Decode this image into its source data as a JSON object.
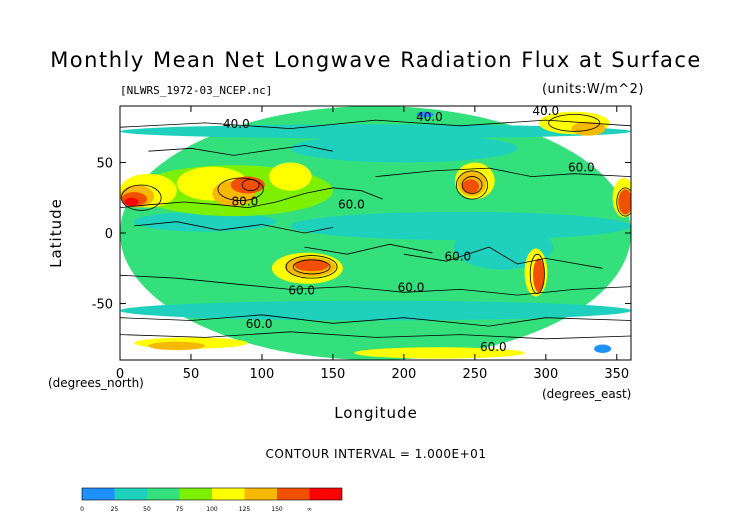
{
  "chart_data": {
    "type": "heatmap",
    "title": "Monthly Mean Net Longwave Radiation Flux at Surface",
    "file_label": "[NLWRS_1972-03_NCEP.nc]",
    "units_label": "(units:W/m^2)",
    "xlabel": "Longitude",
    "ylabel": "Latitude",
    "x_unit_label": "(degrees_east)",
    "y_unit_label": "(degrees_north)",
    "xlim": [
      0,
      360
    ],
    "ylim": [
      -90,
      90
    ],
    "x_ticks": [
      0,
      50,
      100,
      150,
      200,
      250,
      300,
      350
    ],
    "y_ticks": [
      -50,
      0,
      50
    ],
    "contour_interval_text": "CONTOUR INTERVAL = 1.000E+01",
    "contour_labels": [
      {
        "text": "40.0",
        "lon": 82,
        "lat": 77
      },
      {
        "text": "40.0",
        "lon": 218,
        "lat": 82
      },
      {
        "text": "40.0",
        "lon": 300,
        "lat": 86
      },
      {
        "text": "60.0",
        "lon": 163,
        "lat": 20
      },
      {
        "text": "80.0",
        "lon": 88,
        "lat": 22
      },
      {
        "text": "60.0",
        "lon": 238,
        "lat": -17
      },
      {
        "text": "60.0",
        "lon": 128,
        "lat": -41
      },
      {
        "text": "60.0",
        "lon": 205,
        "lat": -39
      },
      {
        "text": "60.0",
        "lon": 98,
        "lat": -65
      },
      {
        "text": "60.0",
        "lon": 263,
        "lat": -81
      },
      {
        "text": "60.0",
        "lon": 325,
        "lat": 46
      }
    ],
    "colorbar": {
      "levels": [
        "0",
        "25",
        "50",
        "75",
        "100",
        "125",
        "150",
        "∞"
      ],
      "colors": [
        "#1e90ff",
        "#1fd1bd",
        "#34e07c",
        "#7df000",
        "#ffff00",
        "#f7b800",
        "#f05000",
        "#ff0000"
      ]
    },
    "color_regions": [
      {
        "lon": 180,
        "lat": 0,
        "rx": 180,
        "ry": 90,
        "c": "#34e07c"
      },
      {
        "lon": 180,
        "lat": 72,
        "rx": 180,
        "ry": 5,
        "c": "#1fd1bd"
      },
      {
        "lon": 180,
        "lat": -55,
        "rx": 180,
        "ry": 7,
        "c": "#1fd1bd"
      },
      {
        "lon": 240,
        "lat": 5,
        "rx": 120,
        "ry": 10,
        "c": "#1fd1bd"
      },
      {
        "lon": 60,
        "lat": 8,
        "rx": 50,
        "ry": 7,
        "c": "#1fd1bd"
      },
      {
        "lon": 200,
        "lat": 60,
        "rx": 80,
        "ry": 10,
        "c": "#1fd1bd"
      },
      {
        "lon": 270,
        "lat": -10,
        "rx": 35,
        "ry": 16,
        "c": "#1fd1bd"
      },
      {
        "lon": 80,
        "lat": 30,
        "rx": 70,
        "ry": 18,
        "c": "#7df000"
      },
      {
        "lon": 20,
        "lat": 30,
        "rx": 20,
        "ry": 12,
        "c": "#ffff00"
      },
      {
        "lon": 12,
        "lat": 26,
        "rx": 12,
        "ry": 8,
        "c": "#f7b800"
      },
      {
        "lon": 10,
        "lat": 24,
        "rx": 9,
        "ry": 5,
        "c": "#f05000"
      },
      {
        "lon": 8,
        "lat": 22,
        "rx": 5,
        "ry": 3,
        "c": "#ff0000"
      },
      {
        "lon": 65,
        "lat": 35,
        "rx": 25,
        "ry": 12,
        "c": "#ffff00"
      },
      {
        "lon": 80,
        "lat": 28,
        "rx": 15,
        "ry": 9,
        "c": "#f7b800"
      },
      {
        "lon": 90,
        "lat": 34,
        "rx": 12,
        "ry": 6,
        "c": "#f05000"
      },
      {
        "lon": 120,
        "lat": 40,
        "rx": 15,
        "ry": 10,
        "c": "#ffff00"
      },
      {
        "lon": 250,
        "lat": 37,
        "rx": 14,
        "ry": 13,
        "c": "#ffff00"
      },
      {
        "lon": 248,
        "lat": 35,
        "rx": 10,
        "ry": 9,
        "c": "#f7b800"
      },
      {
        "lon": 247,
        "lat": 33,
        "rx": 6,
        "ry": 5,
        "c": "#f05000"
      },
      {
        "lon": 355,
        "lat": 25,
        "rx": 8,
        "ry": 14,
        "c": "#ffff00"
      },
      {
        "lon": 356,
        "lat": 22,
        "rx": 5,
        "ry": 9,
        "c": "#f05000"
      },
      {
        "lon": 132,
        "lat": -25,
        "rx": 25,
        "ry": 11,
        "c": "#ffff00"
      },
      {
        "lon": 134,
        "lat": -24,
        "rx": 18,
        "ry": 7,
        "c": "#f7b800"
      },
      {
        "lon": 135,
        "lat": -23,
        "rx": 12,
        "ry": 4,
        "c": "#f05000"
      },
      {
        "lon": 293,
        "lat": -28,
        "rx": 8,
        "ry": 17,
        "c": "#ffff00"
      },
      {
        "lon": 295,
        "lat": -30,
        "rx": 4,
        "ry": 12,
        "c": "#f05000"
      },
      {
        "lon": 320,
        "lat": 78,
        "rx": 25,
        "ry": 8,
        "c": "#ffff00"
      },
      {
        "lon": 330,
        "lat": 74,
        "rx": 12,
        "ry": 5,
        "c": "#f7b800"
      },
      {
        "lon": 225,
        "lat": -85,
        "rx": 60,
        "ry": 4,
        "c": "#ffff00"
      },
      {
        "lon": 50,
        "lat": -78,
        "rx": 40,
        "ry": 4,
        "c": "#ffff00"
      },
      {
        "lon": 40,
        "lat": -80,
        "rx": 20,
        "ry": 3,
        "c": "#f7b800"
      },
      {
        "lon": 215,
        "lat": 84,
        "rx": 6,
        "ry": 2,
        "c": "#1e90ff"
      },
      {
        "lon": 340,
        "lat": -82,
        "rx": 6,
        "ry": 3,
        "c": "#1e90ff"
      }
    ],
    "contour_paths": [
      [
        [
          0,
          18
        ],
        [
          20,
          20
        ],
        [
          45,
          22
        ],
        [
          70,
          20
        ],
        [
          90,
          18
        ],
        [
          110,
          22
        ],
        [
          130,
          28
        ],
        [
          150,
          32
        ],
        [
          170,
          30
        ],
        [
          185,
          24
        ]
      ],
      [
        [
          20,
          58
        ],
        [
          50,
          60
        ],
        [
          80,
          55
        ],
        [
          100,
          58
        ],
        [
          130,
          62
        ],
        [
          150,
          58
        ]
      ],
      [
        [
          0,
          -30
        ],
        [
          40,
          -32
        ],
        [
          80,
          -36
        ],
        [
          120,
          -40
        ],
        [
          160,
          -38
        ],
        [
          200,
          -42
        ],
        [
          240,
          -40
        ],
        [
          280,
          -44
        ],
        [
          320,
          -40
        ],
        [
          360,
          -38
        ]
      ],
      [
        [
          0,
          -60
        ],
        [
          50,
          -62
        ],
        [
          100,
          -58
        ],
        [
          150,
          -64
        ],
        [
          200,
          -60
        ],
        [
          260,
          -66
        ],
        [
          300,
          -60
        ],
        [
          360,
          -62
        ]
      ],
      [
        [
          180,
          40
        ],
        [
          220,
          44
        ],
        [
          260,
          46
        ],
        [
          290,
          40
        ],
        [
          320,
          42
        ],
        [
          360,
          40
        ]
      ],
      [
        [
          200,
          -15
        ],
        [
          230,
          -20
        ],
        [
          260,
          -10
        ],
        [
          280,
          -22
        ],
        [
          300,
          -18
        ],
        [
          340,
          -25
        ]
      ],
      [
        [
          0,
          75
        ],
        [
          60,
          78
        ],
        [
          120,
          74
        ],
        [
          180,
          80
        ],
        [
          240,
          76
        ],
        [
          300,
          80
        ],
        [
          360,
          76
        ]
      ],
      [
        [
          0,
          -72
        ],
        [
          60,
          -74
        ],
        [
          120,
          -70
        ],
        [
          180,
          -74
        ],
        [
          240,
          -72
        ],
        [
          300,
          -75
        ],
        [
          360,
          -73
        ]
      ],
      [
        [
          10,
          5
        ],
        [
          40,
          8
        ],
        [
          70,
          2
        ],
        [
          100,
          6
        ],
        [
          130,
          0
        ],
        [
          150,
          4
        ]
      ],
      [
        [
          130,
          -10
        ],
        [
          160,
          -15
        ],
        [
          190,
          -8
        ],
        [
          220,
          -14
        ]
      ]
    ],
    "contour_rings": [
      {
        "lon": 135,
        "lat": -24,
        "rx": 18,
        "ry": 8
      },
      {
        "lon": 135,
        "lat": -24,
        "rx": 13,
        "ry": 5
      },
      {
        "lon": 248,
        "lat": 34,
        "rx": 11,
        "ry": 10
      },
      {
        "lon": 248,
        "lat": 34,
        "rx": 7,
        "ry": 6
      },
      {
        "lon": 294,
        "lat": -29,
        "rx": 5,
        "ry": 14
      },
      {
        "lon": 15,
        "lat": 25,
        "rx": 14,
        "ry": 9
      },
      {
        "lon": 85,
        "lat": 31,
        "rx": 16,
        "ry": 8
      },
      {
        "lon": 92,
        "lat": 34,
        "rx": 6,
        "ry": 4
      },
      {
        "lon": 356,
        "lat": 22,
        "rx": 6,
        "ry": 10
      },
      {
        "lon": 320,
        "lat": 78,
        "rx": 18,
        "ry": 6
      }
    ]
  }
}
